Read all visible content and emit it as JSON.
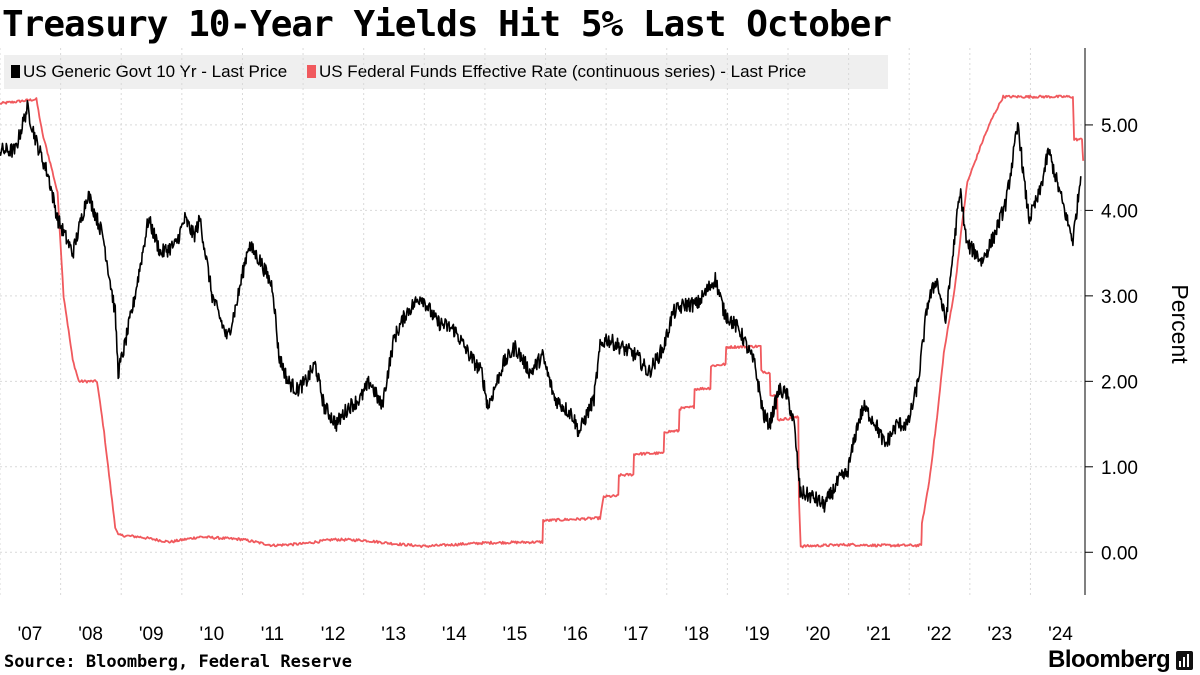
{
  "chart_data": {
    "type": "line",
    "title": "Treasury 10-Year Yields Hit 5% Last October",
    "ylabel": "Percent",
    "xlabel": "",
    "ylim": [
      -0.5,
      5.9
    ],
    "xlim": [
      2007.0,
      2024.9
    ],
    "y_ticks": [
      0,
      1,
      2,
      3,
      4,
      5
    ],
    "y_tick_labels": [
      "0.00",
      "1.00",
      "2.00",
      "3.00",
      "4.00",
      "5.00"
    ],
    "x_ticks": [
      2007,
      2008,
      2009,
      2010,
      2011,
      2012,
      2013,
      2014,
      2015,
      2016,
      2017,
      2018,
      2019,
      2020,
      2021,
      2022,
      2023,
      2024
    ],
    "x_tick_labels": [
      "'07",
      "'08",
      "'09",
      "'10",
      "'11",
      "'12",
      "'13",
      "'14",
      "'15",
      "'16",
      "'17",
      "'18",
      "'19",
      "'20",
      "'21",
      "'22",
      "'23",
      "'24"
    ],
    "series": [
      {
        "name": "US Generic Govt 10 Yr - Last Price",
        "color": "#000000",
        "points": [
          [
            2007.0,
            4.7
          ],
          [
            2007.25,
            4.7
          ],
          [
            2007.45,
            5.2
          ],
          [
            2007.6,
            4.8
          ],
          [
            2007.8,
            4.4
          ],
          [
            2007.95,
            3.9
          ],
          [
            2008.2,
            3.5
          ],
          [
            2008.45,
            4.2
          ],
          [
            2008.7,
            3.7
          ],
          [
            2008.9,
            2.8
          ],
          [
            2008.95,
            2.1
          ],
          [
            2009.05,
            2.4
          ],
          [
            2009.2,
            2.9
          ],
          [
            2009.45,
            3.9
          ],
          [
            2009.65,
            3.5
          ],
          [
            2009.9,
            3.6
          ],
          [
            2010.05,
            3.9
          ],
          [
            2010.2,
            3.7
          ],
          [
            2010.3,
            3.9
          ],
          [
            2010.5,
            3.0
          ],
          [
            2010.75,
            2.5
          ],
          [
            2010.9,
            2.9
          ],
          [
            2011.1,
            3.6
          ],
          [
            2011.3,
            3.4
          ],
          [
            2011.5,
            3.1
          ],
          [
            2011.6,
            2.3
          ],
          [
            2011.75,
            2.0
          ],
          [
            2011.9,
            1.9
          ],
          [
            2012.05,
            2.0
          ],
          [
            2012.2,
            2.2
          ],
          [
            2012.35,
            1.7
          ],
          [
            2012.55,
            1.5
          ],
          [
            2012.75,
            1.7
          ],
          [
            2012.95,
            1.8
          ],
          [
            2013.1,
            2.0
          ],
          [
            2013.3,
            1.7
          ],
          [
            2013.5,
            2.5
          ],
          [
            2013.7,
            2.8
          ],
          [
            2013.95,
            3.0
          ],
          [
            2014.2,
            2.7
          ],
          [
            2014.5,
            2.6
          ],
          [
            2014.75,
            2.3
          ],
          [
            2014.95,
            2.1
          ],
          [
            2015.05,
            1.7
          ],
          [
            2015.3,
            2.2
          ],
          [
            2015.5,
            2.4
          ],
          [
            2015.75,
            2.1
          ],
          [
            2015.95,
            2.3
          ],
          [
            2016.15,
            1.8
          ],
          [
            2016.45,
            1.6
          ],
          [
            2016.55,
            1.4
          ],
          [
            2016.8,
            1.8
          ],
          [
            2016.9,
            2.4
          ],
          [
            2017.0,
            2.5
          ],
          [
            2017.25,
            2.4
          ],
          [
            2017.5,
            2.3
          ],
          [
            2017.7,
            2.1
          ],
          [
            2017.95,
            2.4
          ],
          [
            2018.1,
            2.8
          ],
          [
            2018.3,
            2.9
          ],
          [
            2018.5,
            2.9
          ],
          [
            2018.8,
            3.2
          ],
          [
            2018.95,
            2.8
          ],
          [
            2019.2,
            2.6
          ],
          [
            2019.45,
            2.2
          ],
          [
            2019.6,
            1.6
          ],
          [
            2019.7,
            1.5
          ],
          [
            2019.85,
            1.9
          ],
          [
            2019.98,
            1.85
          ],
          [
            2020.1,
            1.5
          ],
          [
            2020.2,
            0.7
          ],
          [
            2020.4,
            0.65
          ],
          [
            2020.6,
            0.55
          ],
          [
            2020.85,
            0.85
          ],
          [
            2020.98,
            0.93
          ],
          [
            2021.15,
            1.5
          ],
          [
            2021.25,
            1.7
          ],
          [
            2021.45,
            1.5
          ],
          [
            2021.6,
            1.25
          ],
          [
            2021.8,
            1.5
          ],
          [
            2021.98,
            1.5
          ],
          [
            2022.15,
            2.0
          ],
          [
            2022.3,
            2.9
          ],
          [
            2022.45,
            3.2
          ],
          [
            2022.6,
            2.7
          ],
          [
            2022.8,
            4.0
          ],
          [
            2022.85,
            4.2
          ],
          [
            2022.95,
            3.6
          ],
          [
            2023.1,
            3.5
          ],
          [
            2023.2,
            3.4
          ],
          [
            2023.4,
            3.7
          ],
          [
            2023.6,
            4.1
          ],
          [
            2023.75,
            4.8
          ],
          [
            2023.8,
            5.0
          ],
          [
            2023.9,
            4.3
          ],
          [
            2023.98,
            3.9
          ],
          [
            2024.15,
            4.2
          ],
          [
            2024.3,
            4.7
          ],
          [
            2024.45,
            4.3
          ],
          [
            2024.6,
            3.9
          ],
          [
            2024.7,
            3.65
          ],
          [
            2024.78,
            4.1
          ],
          [
            2024.83,
            4.4
          ]
        ]
      },
      {
        "name": "US Federal Funds Effective Rate (continuous series) - Last Price",
        "color": "#f0595d",
        "points": [
          [
            2007.0,
            5.25
          ],
          [
            2007.6,
            5.3
          ],
          [
            2007.7,
            4.9
          ],
          [
            2007.85,
            4.5
          ],
          [
            2007.95,
            4.2
          ],
          [
            2008.05,
            3.0
          ],
          [
            2008.2,
            2.25
          ],
          [
            2008.3,
            2.0
          ],
          [
            2008.6,
            2.0
          ],
          [
            2008.7,
            1.5
          ],
          [
            2008.8,
            0.9
          ],
          [
            2008.9,
            0.3
          ],
          [
            2008.95,
            0.2
          ],
          [
            2009.3,
            0.18
          ],
          [
            2009.8,
            0.12
          ],
          [
            2010.3,
            0.18
          ],
          [
            2011.0,
            0.15
          ],
          [
            2011.5,
            0.08
          ],
          [
            2012.0,
            0.1
          ],
          [
            2012.5,
            0.15
          ],
          [
            2013.0,
            0.14
          ],
          [
            2013.5,
            0.1
          ],
          [
            2014.0,
            0.07
          ],
          [
            2014.5,
            0.09
          ],
          [
            2015.0,
            0.11
          ],
          [
            2015.95,
            0.12
          ],
          [
            2015.96,
            0.37
          ],
          [
            2016.9,
            0.4
          ],
          [
            2016.96,
            0.65
          ],
          [
            2017.2,
            0.66
          ],
          [
            2017.21,
            0.9
          ],
          [
            2017.45,
            0.91
          ],
          [
            2017.46,
            1.15
          ],
          [
            2017.95,
            1.16
          ],
          [
            2017.96,
            1.41
          ],
          [
            2018.2,
            1.42
          ],
          [
            2018.21,
            1.68
          ],
          [
            2018.45,
            1.7
          ],
          [
            2018.46,
            1.91
          ],
          [
            2018.72,
            1.92
          ],
          [
            2018.73,
            2.18
          ],
          [
            2018.97,
            2.2
          ],
          [
            2018.98,
            2.4
          ],
          [
            2019.55,
            2.41
          ],
          [
            2019.56,
            2.12
          ],
          [
            2019.7,
            2.1
          ],
          [
            2019.71,
            1.85
          ],
          [
            2019.82,
            1.83
          ],
          [
            2019.83,
            1.55
          ],
          [
            2020.17,
            1.58
          ],
          [
            2020.18,
            0.65
          ],
          [
            2020.21,
            0.07
          ],
          [
            2021.0,
            0.09
          ],
          [
            2021.5,
            0.08
          ],
          [
            2022.2,
            0.08
          ],
          [
            2022.21,
            0.33
          ],
          [
            2022.33,
            0.83
          ],
          [
            2022.46,
            1.58
          ],
          [
            2022.57,
            2.33
          ],
          [
            2022.75,
            3.08
          ],
          [
            2022.87,
            3.83
          ],
          [
            2022.96,
            4.33
          ],
          [
            2023.09,
            4.58
          ],
          [
            2023.22,
            4.83
          ],
          [
            2023.37,
            5.08
          ],
          [
            2023.55,
            5.33
          ],
          [
            2024.7,
            5.33
          ],
          [
            2024.72,
            4.83
          ],
          [
            2024.85,
            4.83
          ],
          [
            2024.87,
            4.58
          ]
        ]
      }
    ]
  },
  "legend": {
    "items": [
      {
        "label": "US Generic Govt 10 Yr - Last Price",
        "color": "#000000"
      },
      {
        "label": "US Federal Funds Effective Rate (continuous series) - Last Price",
        "color": "#f0595d"
      }
    ]
  },
  "footer": {
    "source": "Source: Bloomberg, Federal Reserve",
    "brand": "Bloomberg"
  }
}
